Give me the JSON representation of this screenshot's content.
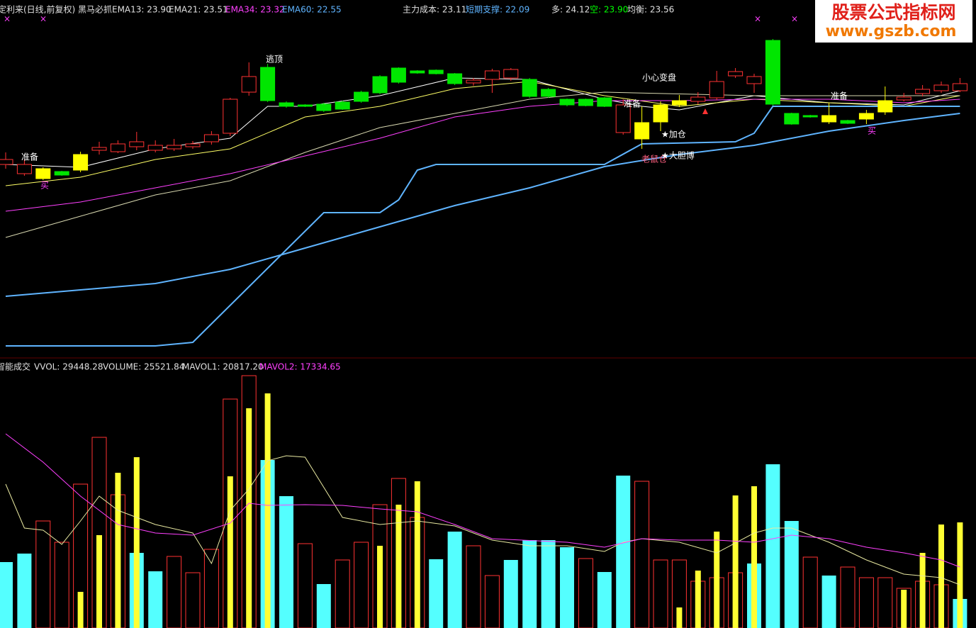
{
  "chart_data": [
    {
      "type": "candlestick",
      "title": "定利来(日线,前复权) 黑马必抓",
      "indicators": [
        "EMA13: 23.90",
        "EMA21: 23.51",
        "EMA34: 23.32",
        "EMA60: 22.55",
        "主力成本: 23.11",
        "短期支撑: 22.09",
        "多: 24.12",
        "空: 23.90",
        "均衡: 23.56"
      ],
      "indicator_colors": [
        "#e0e0e0",
        "#e0e0e0",
        "#ff40ff",
        "#5fb4ff",
        "#e0e0e0",
        "#5fb4ff",
        "#e0e0e0",
        "#00ff00",
        "#e0e0e0"
      ],
      "open": [
        22.98,
        22.85,
        22.78,
        22.88,
        22.9,
        23.18,
        23.16,
        23.23,
        23.18,
        23.2,
        23.23,
        23.3,
        23.42,
        24.0,
        24.35,
        23.85,
        23.82,
        23.83,
        23.86,
        24.0,
        24.22,
        24.34,
        24.3,
        24.31,
        24.26,
        24.13,
        24.18,
        24.2,
        24.18,
        24.04,
        23.9,
        23.9,
        23.92,
        23.43,
        23.57,
        23.58,
        23.82,
        23.87,
        23.92,
        24.23,
        24.12,
        24.73,
        23.7,
        23.67,
        23.58,
        23.6,
        23.62,
        23.72,
        23.89,
        23.98,
        24.02,
        24.02
      ],
      "high": [
        23.15,
        23.05,
        22.94,
        22.89,
        23.16,
        23.3,
        23.32,
        23.44,
        23.32,
        23.34,
        23.31,
        23.45,
        23.92,
        24.42,
        24.4,
        23.87,
        23.83,
        23.85,
        23.88,
        24.02,
        24.24,
        24.35,
        24.31,
        24.32,
        24.27,
        24.2,
        24.33,
        24.34,
        24.2,
        24.06,
        23.91,
        23.91,
        23.93,
        23.9,
        23.8,
        23.87,
        23.96,
        24.0,
        24.3,
        24.34,
        24.26,
        24.75,
        23.71,
        23.68,
        23.85,
        23.61,
        23.75,
        24.08,
        23.99,
        24.1,
        24.15,
        24.2
      ],
      "low": [
        22.92,
        22.82,
        22.76,
        22.82,
        22.87,
        23.12,
        23.14,
        23.18,
        23.15,
        23.17,
        23.2,
        23.26,
        23.38,
        23.95,
        23.86,
        23.78,
        23.79,
        23.72,
        23.75,
        23.85,
        23.97,
        24.12,
        24.26,
        24.25,
        24.1,
        24.09,
        23.99,
        24.16,
        23.92,
        23.92,
        23.8,
        23.8,
        23.79,
        23.4,
        23.2,
        23.45,
        23.79,
        23.83,
        23.89,
        24.2,
        23.99,
        23.81,
        23.54,
        23.64,
        23.55,
        23.55,
        23.55,
        23.68,
        23.87,
        23.94,
        23.99,
        24.0
      ],
      "close": [
        23.05,
        22.98,
        22.92,
        22.83,
        23.12,
        23.22,
        23.27,
        23.3,
        23.25,
        23.25,
        23.27,
        23.4,
        23.9,
        24.22,
        23.88,
        23.8,
        23.8,
        23.74,
        23.76,
        23.87,
        23.99,
        24.14,
        24.27,
        24.26,
        24.12,
        24.17,
        24.3,
        24.32,
        23.94,
        23.94,
        23.82,
        23.81,
        23.8,
        23.82,
        23.34,
        23.82,
        23.88,
        23.93,
        24.15,
        24.29,
        24.22,
        23.83,
        23.55,
        23.65,
        23.67,
        23.56,
        23.7,
        23.88,
        23.93,
        24.04,
        24.1,
        24.12
      ],
      "candle_colors": [
        "#ff3232",
        "#ff3232",
        "#ffff00",
        "#00e600",
        "#ffff00",
        "#ff3232",
        "#ff3232",
        "#ff3232",
        "#ff3232",
        "#ff3232",
        "#ff3232",
        "#ff3232",
        "#ff3232",
        "#ff3232",
        "#00e600",
        "#00e600",
        "#00e600",
        "#00e600",
        "#00e600",
        "#00e600",
        "#00e600",
        "#00e600",
        "#00e600",
        "#00e600",
        "#00e600",
        "#ff3232",
        "#ff3232",
        "#ff3232",
        "#00e600",
        "#00e600",
        "#00e600",
        "#00e600",
        "#00e600",
        "#ff3232",
        "#ffff00",
        "#ffff00",
        "#ffff00",
        "#ff3232",
        "#ff3232",
        "#ff3232",
        "#ff3232",
        "#00e600",
        "#00e600",
        "#00e600",
        "#ffff00",
        "#00e600",
        "#ffff00",
        "#ffff00",
        "#ff3232",
        "#ff3232",
        "#ff3232",
        "#ff3232"
      ],
      "lines": [
        {
          "color": "#ffffff",
          "x": [
            0,
            4,
            8,
            12,
            14,
            16,
            20,
            24,
            28,
            32,
            34,
            36,
            40,
            44,
            48,
            51
          ],
          "values": [
            22.98,
            22.94,
            23.2,
            23.35,
            23.8,
            23.8,
            23.95,
            24.2,
            24.18,
            23.9,
            23.8,
            23.75,
            23.95,
            23.85,
            23.82,
            24.02
          ]
        },
        {
          "color": "#ffff66",
          "x": [
            0,
            4,
            8,
            12,
            16,
            20,
            24,
            28,
            32,
            36,
            40,
            44,
            48,
            51
          ],
          "values": [
            22.68,
            22.8,
            23.05,
            23.2,
            23.65,
            23.8,
            24.05,
            24.15,
            23.95,
            23.8,
            23.9,
            23.85,
            23.8,
            23.95
          ]
        },
        {
          "color": "#d8d8b0",
          "x": [
            0,
            4,
            8,
            12,
            16,
            20,
            24,
            28,
            32,
            40,
            44,
            51
          ],
          "values": [
            21.95,
            22.25,
            22.55,
            22.75,
            23.15,
            23.5,
            23.7,
            23.9,
            24.0,
            23.95,
            23.95,
            23.95
          ]
        },
        {
          "color": "#ff40ff",
          "x": [
            0,
            4,
            8,
            12,
            16,
            20,
            24,
            28,
            32,
            36,
            40,
            44,
            48,
            51
          ],
          "values": [
            22.32,
            22.45,
            22.65,
            22.85,
            23.1,
            23.35,
            23.65,
            23.8,
            23.88,
            23.88,
            23.9,
            23.9,
            23.85,
            23.9
          ]
        },
        {
          "color": "#5fb4ff",
          "x": [
            0,
            8,
            12,
            16,
            20,
            24,
            28,
            32,
            36,
            40,
            44,
            48,
            51
          ],
          "values": [
            21.12,
            21.3,
            21.5,
            21.8,
            22.1,
            22.4,
            22.65,
            22.95,
            23.12,
            23.25,
            23.45,
            23.6,
            23.7
          ]
        },
        {
          "color": "#5fb4ff",
          "x": [
            0,
            8,
            10,
            17,
            20,
            21,
            22,
            23,
            32,
            34,
            39,
            40,
            41,
            51
          ],
          "values": [
            20.42,
            20.42,
            20.47,
            22.3,
            22.3,
            22.48,
            22.9,
            22.98,
            22.98,
            23.27,
            23.3,
            23.42,
            23.8,
            23.8
          ]
        }
      ],
      "annotations": [
        "准备",
        "买",
        "逃顶",
        "小心变盘",
        "准备",
        "★加仓",
        "老鼠仓",
        "★大胆博",
        "准备",
        "买"
      ],
      "annotation_colors": [
        "#ffffff",
        "#ff40ff",
        "#ffffff",
        "#ffffff",
        "#ffffff",
        "#ffffff",
        "#ff6080",
        "#ffffff",
        "#ffffff",
        "#ff40ff"
      ],
      "ylim": [
        20.35,
        25.1
      ]
    },
    {
      "type": "bar",
      "title": "智能成交",
      "indicators": [
        "VVOL: 29448.28",
        "VOLUME: 25521.84",
        "MAVOL1: 20817.20",
        "MAVOL2: 17334.65"
      ],
      "indicator_colors": [
        "#e0e0e0",
        "#e0e0e0",
        "#e0e0e0",
        "#ff40ff"
      ],
      "values": [
        55800,
        63000,
        90600,
        72600,
        121800,
        161400,
        112800,
        63600,
        48000,
        60600,
        46800,
        66600,
        193800,
        213600,
        142200,
        111600,
        71400,
        37200,
        57600,
        72600,
        104400,
        126600,
        93600,
        58200,
        81600,
        69600,
        44400,
        57600,
        74400,
        74400,
        68400,
        58800,
        47400,
        129000,
        124200,
        57600,
        57600,
        39600,
        42600,
        46800,
        54600,
        138600,
        90600,
        60000,
        44400,
        51600,
        42600,
        42600,
        33600,
        39600,
        36600,
        24600
      ],
      "bar_colors": [
        "#54ffff",
        "#54ffff",
        "#ff3232",
        "#ff3232",
        "#ff3232",
        "#ff3232",
        "#ff3232",
        "#54ffff",
        "#54ffff",
        "#ff3232",
        "#ff3232",
        "#ff3232",
        "#ff3232",
        "#ff3232",
        "#54ffff",
        "#54ffff",
        "#ff3232",
        "#54ffff",
        "#ff3232",
        "#ff3232",
        "#ff3232",
        "#ff3232",
        "#ff3232",
        "#54ffff",
        "#54ffff",
        "#ff3232",
        "#ff3232",
        "#54ffff",
        "#54ffff",
        "#54ffff",
        "#54ffff",
        "#ff3232",
        "#54ffff",
        "#54ffff",
        "#ff3232",
        "#ff3232",
        "#ff3232",
        "#ff3232",
        "#ff3232",
        "#ff3232",
        "#54ffff",
        "#54ffff",
        "#54ffff",
        "#ff3232",
        "#54ffff",
        "#ff3232",
        "#ff3232",
        "#ff3232",
        "#ff3232",
        "#ff3232",
        "#ff3232",
        "#54ffff"
      ],
      "series": [
        {
          "color": "#ffff33",
          "values": [
            null,
            null,
            null,
            null,
            30600,
            78600,
            131400,
            144600,
            null,
            null,
            null,
            null,
            128400,
            186000,
            198600,
            null,
            null,
            null,
            null,
            null,
            69600,
            104400,
            124200,
            null,
            null,
            null,
            null,
            null,
            null,
            null,
            null,
            null,
            null,
            null,
            null,
            null,
            17400,
            48600,
            81600,
            112200,
            120000,
            null,
            null,
            null,
            null,
            null,
            null,
            null,
            32400,
            63600,
            87600,
            89400
          ]
        }
      ],
      "lines": [
        {
          "color": "#e8e8a0",
          "x": [
            0,
            1,
            2,
            3,
            4,
            5,
            6,
            8,
            10,
            11,
            12,
            13,
            14,
            15,
            16,
            18,
            20,
            22,
            24,
            26,
            28,
            30,
            32,
            33,
            34,
            36,
            38,
            40,
            41,
            42,
            44,
            46,
            48,
            50,
            51
          ],
          "values": [
            121800,
            84600,
            82800,
            70800,
            90600,
            111600,
            99600,
            87600,
            80400,
            54600,
            99600,
            117600,
            141600,
            145800,
            144600,
            93600,
            87600,
            90600,
            86400,
            74400,
            69600,
            69600,
            64800,
            72600,
            75600,
            72600,
            63600,
            80400,
            84600,
            84600,
            72600,
            57600,
            45600,
            42600,
            36600
          ]
        },
        {
          "color": "#ff40ff",
          "x": [
            0,
            2,
            4,
            6,
            8,
            10,
            12,
            13,
            14,
            16,
            18,
            20,
            22,
            24,
            26,
            30,
            32,
            34,
            36,
            38,
            40,
            42,
            44,
            46,
            48,
            50,
            51
          ],
          "values": [
            164400,
            140400,
            111600,
            87600,
            80400,
            78600,
            88800,
            105600,
            103800,
            104400,
            103800,
            100800,
            98400,
            87600,
            75600,
            72600,
            68400,
            75600,
            74400,
            74400,
            72600,
            78600,
            75600,
            68400,
            63600,
            57600,
            51600
          ]
        }
      ],
      "ylim": [
        0,
        216600
      ]
    }
  ],
  "watermark": {
    "title": "股票公式指标网",
    "url": "www.gszb.com"
  }
}
